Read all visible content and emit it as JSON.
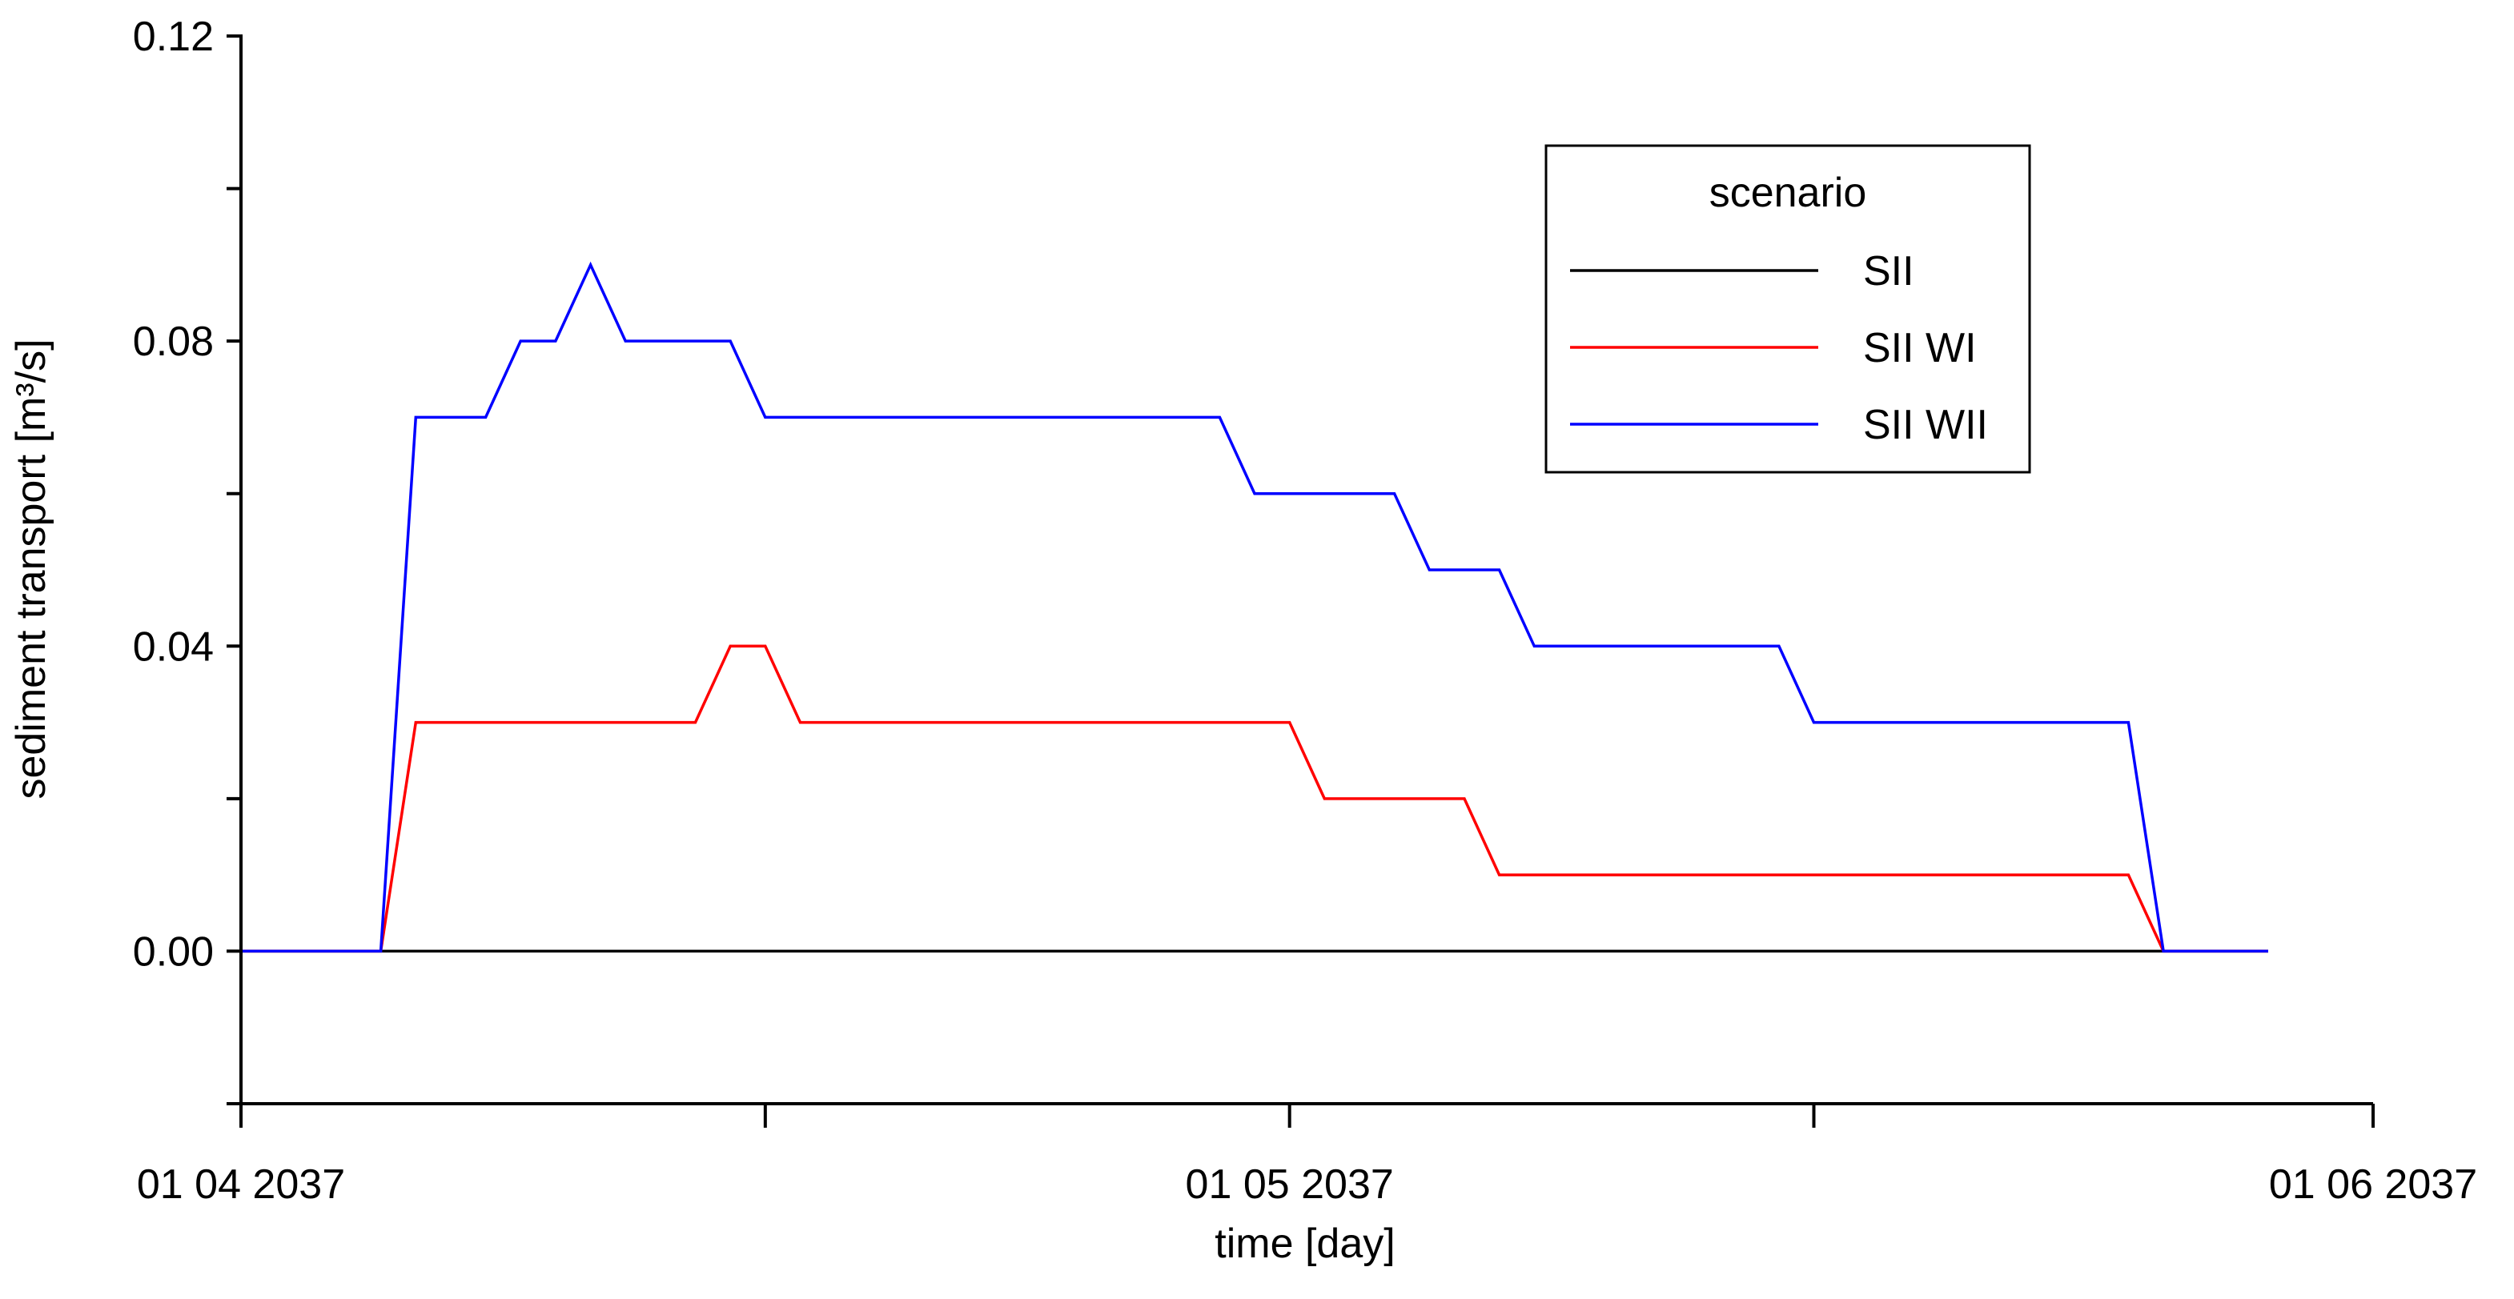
{
  "chart_data": {
    "type": "line",
    "title": "",
    "xlabel": "time [day]",
    "ylabel": "sediment transport [m³/s]",
    "x_unit": "day",
    "xlim": [
      "2037-04-01",
      "2037-06-01"
    ],
    "x_ticks": [
      "2037-04-01",
      "2037-04-16",
      "2037-05-01",
      "2037-05-16",
      "2037-06-01"
    ],
    "x_tick_labels": [
      "01 04 2037",
      "",
      "01 05 2037",
      "",
      "01 06 2037"
    ],
    "ylim": [
      -0.02,
      0.12
    ],
    "y_ticks": [
      -0.02,
      0,
      0.02,
      0.04,
      0.06,
      0.08,
      0.1,
      0.12
    ],
    "y_tick_labels": [
      "",
      "0.00",
      "",
      "0.04",
      "",
      "0.08",
      "",
      "0.12"
    ],
    "grid": false,
    "legend": {
      "title": "scenario",
      "position": "top-right"
    },
    "series": [
      {
        "name": "SII",
        "color": "#000000",
        "points": [
          [
            "2037-04-01",
            0
          ],
          [
            "2037-05-29",
            0
          ]
        ]
      },
      {
        "name": "SII WI",
        "color": "#ff0000",
        "points": [
          [
            "2037-04-01",
            0
          ],
          [
            "2037-04-05",
            0
          ],
          [
            "2037-04-06",
            0.03
          ],
          [
            "2037-04-14",
            0.03
          ],
          [
            "2037-04-15",
            0.04
          ],
          [
            "2037-04-16",
            0.04
          ],
          [
            "2037-04-17",
            0.03
          ],
          [
            "2037-05-01",
            0.03
          ],
          [
            "2037-05-02",
            0.02
          ],
          [
            "2037-05-06",
            0.02
          ],
          [
            "2037-05-07",
            0.01
          ],
          [
            "2037-05-25",
            0.01
          ],
          [
            "2037-05-26",
            0
          ],
          [
            "2037-05-29",
            0
          ]
        ]
      },
      {
        "name": "SII WII",
        "color": "#0000ff",
        "points": [
          [
            "2037-04-01",
            0
          ],
          [
            "2037-04-05",
            0
          ],
          [
            "2037-04-06",
            0.07
          ],
          [
            "2037-04-08",
            0.07
          ],
          [
            "2037-04-09",
            0.08
          ],
          [
            "2037-04-10",
            0.08
          ],
          [
            "2037-04-11",
            0.09
          ],
          [
            "2037-04-12",
            0.08
          ],
          [
            "2037-04-15",
            0.08
          ],
          [
            "2037-04-16",
            0.07
          ],
          [
            "2037-04-29",
            0.07
          ],
          [
            "2037-04-30",
            0.06
          ],
          [
            "2037-05-04",
            0.06
          ],
          [
            "2037-05-05",
            0.05
          ],
          [
            "2037-05-07",
            0.05
          ],
          [
            "2037-05-08",
            0.04
          ],
          [
            "2037-05-15",
            0.04
          ],
          [
            "2037-05-16",
            0.03
          ],
          [
            "2037-05-25",
            0.03
          ],
          [
            "2037-05-26",
            0
          ],
          [
            "2037-05-29",
            0
          ]
        ]
      }
    ]
  }
}
